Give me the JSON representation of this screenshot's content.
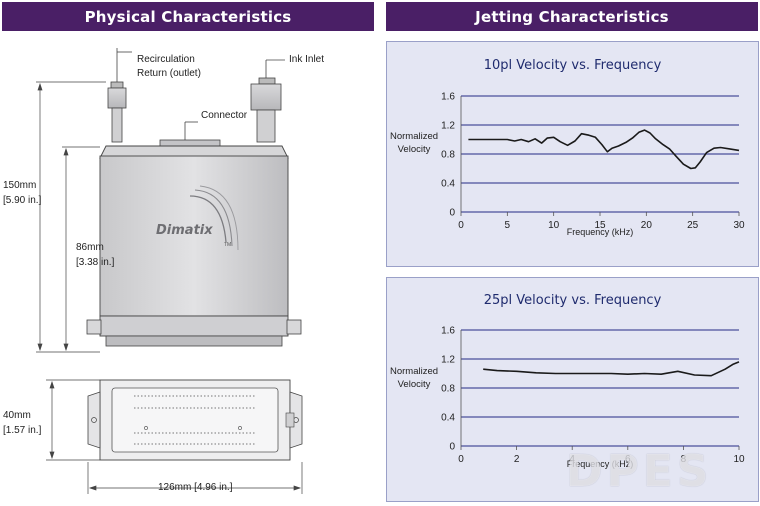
{
  "headers": {
    "physical": "Physical Characteristics",
    "jetting": "Jetting Characteristics"
  },
  "diagram": {
    "recirc_line1": "Recirculation",
    "recirc_line2": "Return (outlet)",
    "ink_inlet": "Ink Inlet",
    "connector": "Connector",
    "logo_text": "Dimatix",
    "logo_tm": "TM",
    "dim_150_a": "150mm",
    "dim_150_b": "[5.90 in.]",
    "dim_86_a": "86mm",
    "dim_86_b": "[3.38 in.]",
    "dim_40_a": "40mm",
    "dim_40_b": "[1.57 in.]",
    "dim_126": "126mm [4.96 in.]"
  },
  "chart_data": [
    {
      "type": "line",
      "title": "10pl Velocity vs. Frequency",
      "xlabel": "Frequency (kHz)",
      "ylabel": "Normalized Velocity",
      "xlim": [
        0,
        30
      ],
      "ylim": [
        0,
        1.6
      ],
      "xticks": [
        0,
        5,
        10,
        15,
        20,
        25,
        30
      ],
      "yticks": [
        0,
        0.4,
        0.8,
        1.2,
        1.6
      ],
      "grid": "horizontal",
      "color": "#1a1a1a",
      "x": [
        0.8,
        2,
        4,
        5,
        5.8,
        6.5,
        7.3,
        8,
        8.7,
        9.3,
        10,
        10.7,
        11.5,
        12.3,
        13,
        13.8,
        14.5,
        15.2,
        15.8,
        16.3,
        17,
        17.8,
        18.5,
        19.2,
        19.8,
        20.4,
        21,
        21.8,
        22.5,
        23.2,
        24,
        24.8,
        25.3,
        25.8,
        26.5,
        27.3,
        28,
        29,
        30
      ],
      "y": [
        1.0,
        1.0,
        1.0,
        1.0,
        0.98,
        1.0,
        0.97,
        1.01,
        0.95,
        1.02,
        1.03,
        0.97,
        0.92,
        0.98,
        1.08,
        1.06,
        1.03,
        0.93,
        0.83,
        0.88,
        0.91,
        0.96,
        1.02,
        1.1,
        1.13,
        1.09,
        1.01,
        0.93,
        0.87,
        0.77,
        0.66,
        0.6,
        0.61,
        0.69,
        0.82,
        0.88,
        0.89,
        0.87,
        0.85
      ]
    },
    {
      "type": "line",
      "title": "25pl Velocity vs. Frequency",
      "xlabel": "Frequency (kHz)",
      "ylabel": "Normalized Velocity",
      "xlim": [
        0,
        10
      ],
      "ylim": [
        0,
        1.6
      ],
      "xticks": [
        0,
        2,
        4,
        6,
        8,
        10
      ],
      "yticks": [
        0,
        0.4,
        0.8,
        1.2,
        1.6
      ],
      "grid": "horizontal",
      "color": "#1a1a1a",
      "x": [
        0.8,
        1.3,
        2,
        2.7,
        3.4,
        4,
        4.7,
        5.4,
        6,
        6.6,
        7.2,
        7.8,
        8.4,
        9,
        9.5,
        9.8,
        10
      ],
      "y": [
        1.06,
        1.04,
        1.03,
        1.01,
        1.0,
        1.0,
        1.0,
        1.0,
        0.99,
        1.0,
        0.99,
        1.03,
        0.98,
        0.97,
        1.06,
        1.13,
        1.16
      ]
    }
  ],
  "watermark": "DPES"
}
